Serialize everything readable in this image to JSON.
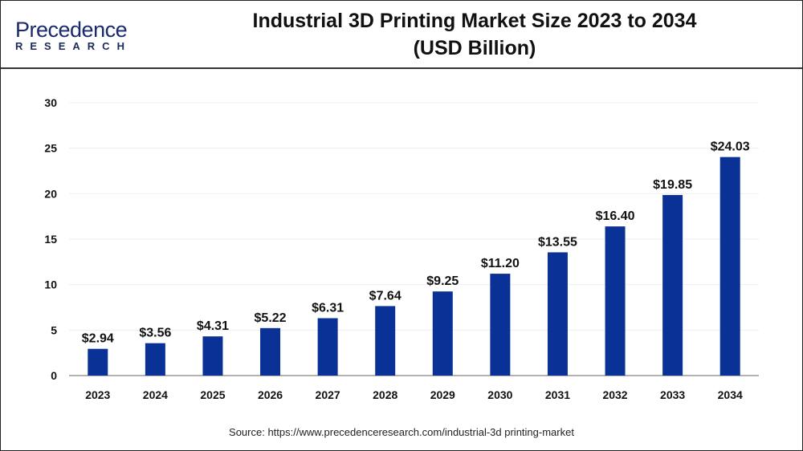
{
  "logo": {
    "line1": "Precedence",
    "line2": "RESEARCH"
  },
  "chart_data": {
    "type": "bar",
    "title": "Industrial 3D Printing Market Size 2023 to 2034",
    "subtitle": "(USD Billion)",
    "categories": [
      "2023",
      "2024",
      "2025",
      "2026",
      "2027",
      "2028",
      "2029",
      "2030",
      "2031",
      "2032",
      "2033",
      "2034"
    ],
    "values": [
      2.94,
      3.56,
      4.31,
      5.22,
      6.31,
      7.64,
      9.25,
      11.2,
      13.55,
      16.4,
      19.85,
      24.03
    ],
    "data_labels": [
      "$2.94",
      "$3.56",
      "$4.31",
      "$5.22",
      "$6.31",
      "$7.64",
      "$9.25",
      "$11.20",
      "$13.55",
      "$16.40",
      "$19.85",
      "$24.03"
    ],
    "xlabel": "",
    "ylabel": "",
    "ylim": [
      0,
      30
    ],
    "yticks": [
      0,
      5,
      10,
      15,
      20,
      25,
      30
    ],
    "grid": true,
    "bar_color": "#0a3296"
  },
  "source": "Source: https://www.precedenceresearch.com/industrial-3d printing-market"
}
